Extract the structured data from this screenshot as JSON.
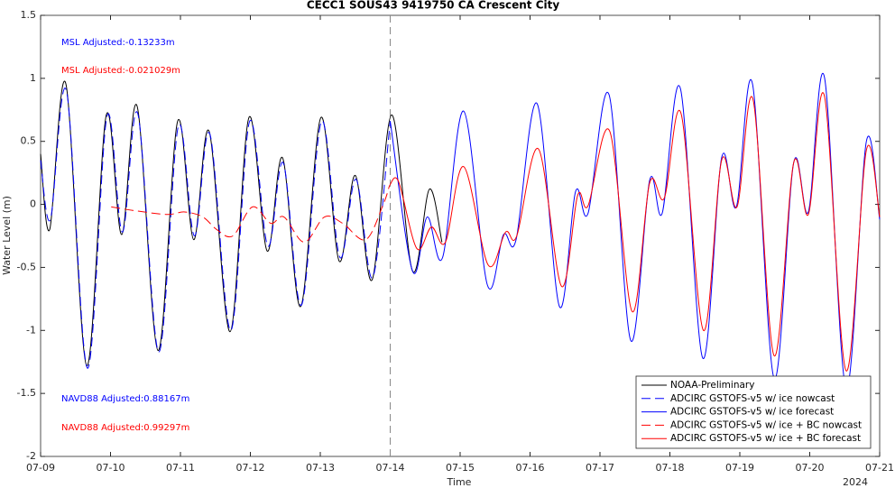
{
  "chart_data": {
    "type": "line",
    "title": "CECC1 SOUS43 9419750 CA Crescent City",
    "x_label": "Time",
    "y_label": "Water Level (m)",
    "x_year_label": "2024",
    "xlim": [
      0,
      12
    ],
    "xticks": [
      {
        "value": 0,
        "label": "07-09"
      },
      {
        "value": 1,
        "label": "07-10"
      },
      {
        "value": 2,
        "label": "07-11"
      },
      {
        "value": 3,
        "label": "07-12"
      },
      {
        "value": 4,
        "label": "07-13"
      },
      {
        "value": 5,
        "label": "07-14"
      },
      {
        "value": 6,
        "label": "07-15"
      },
      {
        "value": 7,
        "label": "07-16"
      },
      {
        "value": 8,
        "label": "07-17"
      },
      {
        "value": 9,
        "label": "07-18"
      },
      {
        "value": 10,
        "label": "07-19"
      },
      {
        "value": 11,
        "label": "07-20"
      },
      {
        "value": 12,
        "label": "07-21"
      }
    ],
    "ylim": [
      -2,
      1.5
    ],
    "yticks": [
      -2,
      -1.5,
      -1,
      -0.5,
      0,
      0.5,
      1,
      1.5
    ],
    "forecast_start": 5,
    "legend": "lower right",
    "annotations": [
      {
        "text": "MSL Adjusted:-0.13233m",
        "color": "#0000ff"
      },
      {
        "text": "MSL Adjusted:-0.021029m",
        "color": "#ff0000"
      },
      {
        "text": "NAVD88 Adjusted:0.88167m",
        "color": "#0000ff"
      },
      {
        "text": "NAVD88 Adjusted:0.99297m",
        "color": "#ff0000"
      }
    ],
    "series": [
      {
        "name": "NOAA-Preliminary",
        "color": "#000000",
        "dashed": false,
        "x": [
          0,
          0.13,
          0.36,
          0.66,
          0.94,
          1.16,
          1.38,
          1.68,
          1.96,
          2.19,
          2.41,
          2.71,
          2.98,
          3.24,
          3.46,
          3.72,
          4.01,
          4.27,
          4.5,
          4.74,
          5.02,
          5.32,
          5.56,
          5.74
        ],
        "values": [
          0.4,
          -0.2,
          0.96,
          -1.28,
          0.71,
          -0.24,
          0.78,
          -1.16,
          0.66,
          -0.28,
          0.58,
          -1.01,
          0.69,
          -0.37,
          0.37,
          -0.81,
          0.69,
          -0.45,
          0.23,
          -0.6,
          0.71,
          -0.53,
          0.12,
          -0.3
        ]
      },
      {
        "name": "ADCIRC GSTOFS-v5 w/ ice nowcast",
        "color": "#0000ff",
        "dashed": true,
        "x": [
          0,
          0.14,
          0.37,
          0.67,
          0.95,
          1.17,
          1.39,
          1.69,
          1.97,
          2.2,
          2.42,
          2.72,
          2.99,
          3.25,
          3.47,
          3.73,
          4.02,
          4.28,
          4.51,
          4.75,
          5.0
        ],
        "values": [
          0.35,
          -0.12,
          0.9,
          -1.3,
          0.7,
          -0.22,
          0.72,
          -1.17,
          0.62,
          -0.25,
          0.56,
          -1.0,
          0.66,
          -0.33,
          0.33,
          -0.8,
          0.66,
          -0.42,
          0.2,
          -0.58,
          0.66
        ]
      },
      {
        "name": "ADCIRC GSTOFS-v5 w/ ice forecast",
        "color": "#0000ff",
        "dashed": false,
        "x": [
          5.0,
          5.32,
          5.53,
          5.75,
          6.05,
          6.39,
          6.62,
          6.8,
          7.1,
          7.42,
          7.65,
          7.83,
          8.13,
          8.44,
          8.71,
          8.89,
          9.15,
          9.47,
          9.74,
          9.95,
          10.18,
          10.49,
          10.77,
          10.98,
          11.21,
          11.52,
          11.81,
          12.0
        ],
        "values": [
          0.66,
          -0.53,
          -0.1,
          -0.42,
          0.74,
          -0.64,
          -0.24,
          -0.28,
          0.8,
          -0.81,
          0.1,
          -0.07,
          0.87,
          -1.08,
          0.19,
          -0.07,
          0.92,
          -1.22,
          0.37,
          -0.02,
          0.96,
          -1.38,
          0.33,
          -0.06,
          1.01,
          -1.46,
          0.5,
          -0.12
        ]
      },
      {
        "name": "ADCIRC GSTOFS-v5 w/ ice + BC nowcast",
        "color": "#ff0000",
        "dashed": true,
        "x": [
          1.01,
          1.35,
          1.81,
          2.06,
          2.32,
          2.52,
          2.75,
          3.03,
          3.29,
          3.48,
          3.77,
          4.06,
          4.32,
          4.65,
          4.9,
          4.99
        ],
        "values": [
          -0.02,
          -0.05,
          -0.08,
          -0.06,
          -0.1,
          -0.2,
          -0.25,
          -0.02,
          -0.15,
          -0.1,
          -0.3,
          -0.1,
          -0.15,
          -0.28,
          0.0,
          0.15
        ]
      },
      {
        "name": "ADCIRC GSTOFS-v5 w/ ice + BC forecast",
        "color": "#ff0000",
        "dashed": false,
        "x": [
          4.99,
          5.12,
          5.38,
          5.59,
          5.79,
          6.05,
          6.4,
          6.65,
          6.81,
          7.12,
          7.45,
          7.68,
          7.83,
          8.14,
          8.46,
          8.71,
          8.92,
          9.16,
          9.48,
          9.74,
          9.96,
          10.19,
          10.49,
          10.77,
          10.98,
          11.21,
          11.52,
          11.81,
          12.0
        ],
        "values": [
          0.15,
          0.18,
          -0.35,
          -0.18,
          -0.3,
          0.3,
          -0.48,
          -0.22,
          -0.25,
          0.44,
          -0.65,
          0.07,
          -0.01,
          0.58,
          -0.85,
          0.17,
          0.05,
          0.72,
          -1.0,
          0.35,
          -0.02,
          0.83,
          -1.2,
          0.33,
          -0.08,
          0.86,
          -1.32,
          0.43,
          -0.1
        ]
      }
    ]
  }
}
